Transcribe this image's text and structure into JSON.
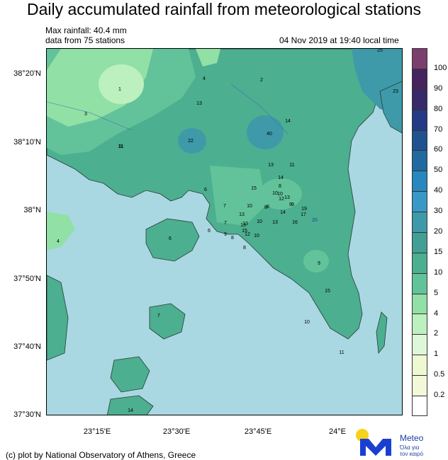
{
  "title": "Daily accumulated rainfall from meteorological stations",
  "info": {
    "max_rainfall": "Max rainfall: 40.4 mm",
    "station_count": "data from 75 stations",
    "timestamp": "04 Nov 2019 at 19:40 local time"
  },
  "axes": {
    "lat_labels": [
      "38°20'N",
      "38°10'N",
      "38°N",
      "37°50'N",
      "37°40'N",
      "37°30'N"
    ],
    "lon_labels": [
      "23°15'E",
      "23°30'E",
      "23°45'E",
      "24°E"
    ]
  },
  "legend": {
    "levels": [
      "100",
      "90",
      "80",
      "70",
      "60",
      "50",
      "40",
      "30",
      "20",
      "15",
      "10",
      "5",
      "4",
      "2",
      "1",
      "0.5",
      "0.2"
    ],
    "colors": [
      "#7b3f6e",
      "#46245e",
      "#362a6a",
      "#243a86",
      "#20528f",
      "#206aa0",
      "#2787be",
      "#3a98c6",
      "#3e9aa8",
      "#419f95",
      "#4caf8f",
      "#62c39a",
      "#91e0a6",
      "#bcf0bf",
      "#dff7d9",
      "#eef8d1",
      "#f2f8d8",
      "#ffffff"
    ]
  },
  "stations": [
    {
      "v": "1"
    },
    {
      "v": "4"
    },
    {
      "v": "2"
    },
    {
      "v": "25"
    },
    {
      "v": "23"
    },
    {
      "v": "3"
    },
    {
      "v": "13"
    },
    {
      "v": "14"
    },
    {
      "v": "40"
    },
    {
      "v": "22"
    },
    {
      "v": "11"
    },
    {
      "v": "13"
    },
    {
      "v": "11"
    },
    {
      "v": "14"
    },
    {
      "v": "15"
    },
    {
      "v": "8"
    },
    {
      "v": "10"
    },
    {
      "v": "12"
    },
    {
      "v": "10"
    },
    {
      "v": "13"
    },
    {
      "v": "9"
    },
    {
      "v": "6"
    },
    {
      "v": "7"
    },
    {
      "v": "8"
    },
    {
      "v": "10"
    },
    {
      "v": "8"
    },
    {
      "v": "14"
    },
    {
      "v": "9"
    },
    {
      "v": "19"
    },
    {
      "v": "17"
    },
    {
      "v": "20"
    },
    {
      "v": "13"
    },
    {
      "v": "10"
    },
    {
      "v": "13"
    },
    {
      "v": "16"
    },
    {
      "v": "13"
    },
    {
      "v": "7"
    },
    {
      "v": "9"
    },
    {
      "v": "8"
    },
    {
      "v": "15"
    },
    {
      "v": "12"
    },
    {
      "v": "10"
    },
    {
      "v": "13"
    },
    {
      "v": "8"
    },
    {
      "v": "6"
    },
    {
      "v": "6"
    },
    {
      "v": "4"
    },
    {
      "v": "9"
    },
    {
      "v": "15"
    },
    {
      "v": "10"
    },
    {
      "v": "7"
    },
    {
      "v": "11"
    },
    {
      "v": "14"
    },
    {
      "v": "11"
    }
  ],
  "footer": "(c) plot by National Observatory of Athens, Greece",
  "logo": {
    "name": "Meteo",
    "tagline_1": "Όλα για",
    "tagline_2": "τον καιρό"
  }
}
